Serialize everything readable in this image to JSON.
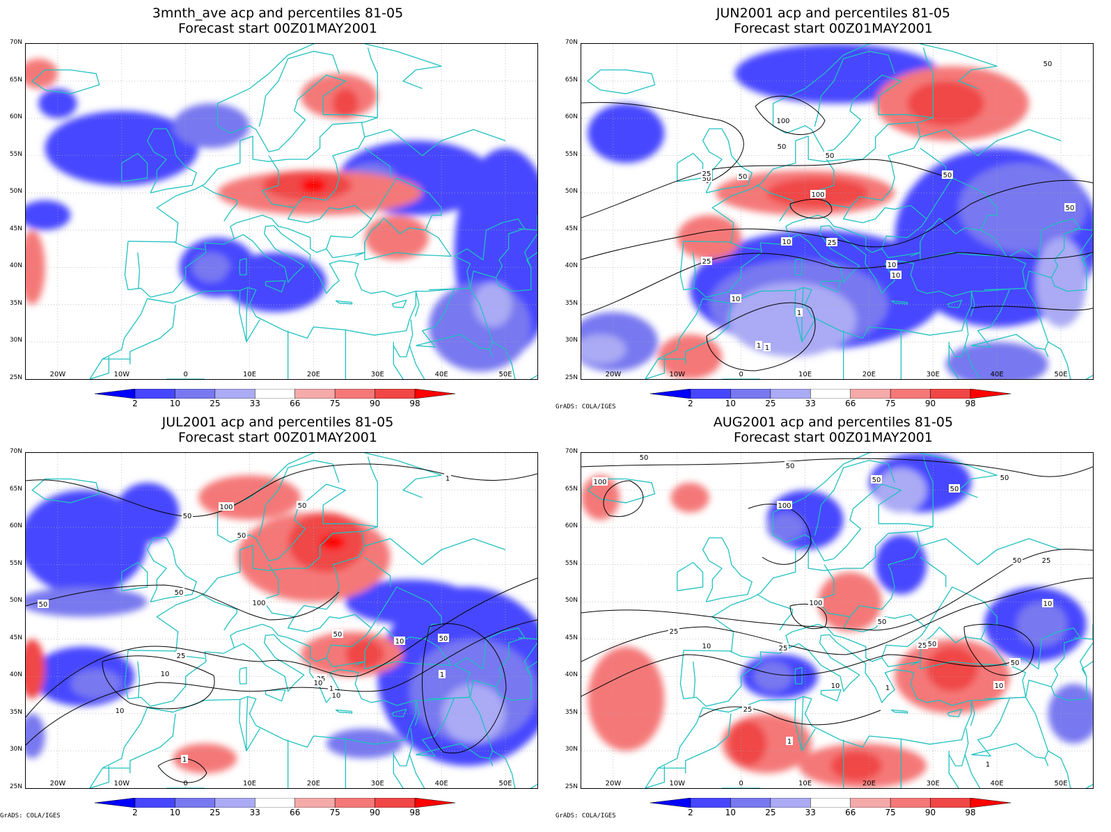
{
  "panels": [
    {
      "title_line1": "3mnth_ave acp and percentiles 81-05",
      "title_line2": "Forecast start 00Z01MAY2001",
      "credit": "",
      "blobs": [
        {
          "lon": -10,
          "lat": 56,
          "rx": 12,
          "ry": 5,
          "c": 1
        },
        {
          "lon": 4,
          "lat": 59,
          "rx": 6,
          "ry": 3,
          "c": 2
        },
        {
          "lon": -20,
          "lat": 62,
          "rx": 3,
          "ry": 2,
          "c": 1
        },
        {
          "lon": -22,
          "lat": 47,
          "rx": 4,
          "ry": 2,
          "c": 1
        },
        {
          "lon": 36,
          "lat": 52,
          "rx": 12,
          "ry": 5,
          "c": 1
        },
        {
          "lon": 29,
          "lat": 52,
          "rx": 4,
          "ry": 2,
          "c": 2
        },
        {
          "lon": 50,
          "lat": 42,
          "rx": 8,
          "ry": 14,
          "c": 1
        },
        {
          "lon": 46,
          "lat": 32,
          "rx": 8,
          "ry": 6,
          "c": 2
        },
        {
          "lon": 48,
          "lat": 35,
          "rx": 3,
          "ry": 3,
          "c": 3
        },
        {
          "lon": 5,
          "lat": 40,
          "rx": 6,
          "ry": 4,
          "c": 1
        },
        {
          "lon": 4,
          "lat": 40,
          "rx": 3,
          "ry": 2,
          "c": 2
        },
        {
          "lon": 14,
          "lat": 38,
          "rx": 8,
          "ry": 4,
          "c": 1
        },
        {
          "lon": 21,
          "lat": 50,
          "rx": 16,
          "ry": 3,
          "c": 6
        },
        {
          "lon": 19,
          "lat": 51,
          "rx": 7,
          "ry": 2,
          "c": 7
        },
        {
          "lon": 20,
          "lat": 51,
          "rx": 2,
          "ry": 1,
          "c": 8
        },
        {
          "lon": 24,
          "lat": 63,
          "rx": 6,
          "ry": 3,
          "c": 6
        },
        {
          "lon": 25,
          "lat": 62,
          "rx": 2,
          "ry": 2,
          "c": 7
        },
        {
          "lon": 33,
          "lat": 44,
          "rx": 5,
          "ry": 3,
          "c": 6
        },
        {
          "lon": -23,
          "lat": 66,
          "rx": 3,
          "ry": 2,
          "c": 6
        },
        {
          "lon": -24,
          "lat": 40,
          "rx": 2,
          "ry": 5,
          "c": 6
        }
      ],
      "contour_labels": []
    },
    {
      "title_line1": "JUN2001 acp and percentiles 81-05",
      "title_line2": "Forecast start 00Z01MAY2001",
      "credit": "GrADS: COLA/IGES",
      "blobs": [
        {
          "lon": 15,
          "lat": 66,
          "rx": 16,
          "ry": 4,
          "c": 1
        },
        {
          "lon": -18,
          "lat": 58,
          "rx": 6,
          "ry": 4,
          "c": 1
        },
        {
          "lon": 12,
          "lat": 37,
          "rx": 20,
          "ry": 8,
          "c": 1
        },
        {
          "lon": 9,
          "lat": 35,
          "rx": 14,
          "ry": 6,
          "c": 2
        },
        {
          "lon": 8,
          "lat": 33,
          "rx": 10,
          "ry": 5,
          "c": 3
        },
        {
          "lon": 40,
          "lat": 44,
          "rx": 16,
          "ry": 12,
          "c": 1
        },
        {
          "lon": 44,
          "lat": 48,
          "rx": 10,
          "ry": 6,
          "c": 2
        },
        {
          "lon": 50,
          "lat": 38,
          "rx": 4,
          "ry": 6,
          "c": 3
        },
        {
          "lon": -20,
          "lat": 30,
          "rx": 7,
          "ry": 4,
          "c": 2
        },
        {
          "lon": -22,
          "lat": 29,
          "rx": 4,
          "ry": 2,
          "c": 3
        },
        {
          "lon": 40,
          "lat": 27,
          "rx": 8,
          "ry": 3,
          "c": 2
        },
        {
          "lon": 33,
          "lat": 62,
          "rx": 12,
          "ry": 5,
          "c": 6
        },
        {
          "lon": 32,
          "lat": 62,
          "rx": 6,
          "ry": 3,
          "c": 7
        },
        {
          "lon": 10,
          "lat": 50,
          "rx": 14,
          "ry": 3,
          "c": 6
        },
        {
          "lon": 12,
          "lat": 50,
          "rx": 8,
          "ry": 2,
          "c": 7
        },
        {
          "lon": -5,
          "lat": 44,
          "rx": 5,
          "ry": 3,
          "c": 6
        },
        {
          "lon": -8,
          "lat": 28,
          "rx": 5,
          "ry": 3,
          "c": 6
        }
      ],
      "contour_labels": [
        "50",
        "100",
        "50",
        "50",
        "100",
        "50",
        "25",
        "50",
        "10",
        "25",
        "10",
        "1",
        "10",
        "1",
        "25",
        "10",
        "1",
        "50",
        "50"
      ]
    },
    {
      "title_line1": "JUL2001 acp and percentiles 81-05",
      "title_line2": "Forecast start 00Z01MAY2001",
      "credit": "GrADS: COLA/IGES",
      "blobs": [
        {
          "lon": -16,
          "lat": 58,
          "rx": 10,
          "ry": 7,
          "c": 1
        },
        {
          "lon": -16,
          "lat": 50,
          "rx": 10,
          "ry": 2,
          "c": 2
        },
        {
          "lon": -6,
          "lat": 62,
          "rx": 5,
          "ry": 4,
          "c": 1
        },
        {
          "lon": -16,
          "lat": 40,
          "rx": 8,
          "ry": 4,
          "c": 1
        },
        {
          "lon": -14,
          "lat": 39,
          "rx": 4,
          "ry": 2,
          "c": 2
        },
        {
          "lon": 44,
          "lat": 40,
          "rx": 14,
          "ry": 12,
          "c": 1
        },
        {
          "lon": 45,
          "lat": 38,
          "rx": 10,
          "ry": 7,
          "c": 2
        },
        {
          "lon": 45,
          "lat": 35,
          "rx": 5,
          "ry": 4,
          "c": 3
        },
        {
          "lon": 35,
          "lat": 50,
          "rx": 10,
          "ry": 3,
          "c": 1
        },
        {
          "lon": -24,
          "lat": 32,
          "rx": 2,
          "ry": 3,
          "c": 2
        },
        {
          "lon": 28,
          "lat": 31,
          "rx": 6,
          "ry": 2,
          "c": 2
        },
        {
          "lon": 20,
          "lat": 56,
          "rx": 12,
          "ry": 6,
          "c": 6
        },
        {
          "lon": 22,
          "lat": 58,
          "rx": 6,
          "ry": 4,
          "c": 7
        },
        {
          "lon": 23,
          "lat": 58,
          "rx": 2,
          "ry": 1,
          "c": 8
        },
        {
          "lon": 10,
          "lat": 64,
          "rx": 8,
          "ry": 3,
          "c": 6
        },
        {
          "lon": 26,
          "lat": 43,
          "rx": 8,
          "ry": 3,
          "c": 6
        },
        {
          "lon": 28,
          "lat": 43,
          "rx": 3,
          "ry": 2,
          "c": 7
        },
        {
          "lon": 3,
          "lat": 29,
          "rx": 5,
          "ry": 2,
          "c": 6
        },
        {
          "lon": -24,
          "lat": 41,
          "rx": 2,
          "ry": 4,
          "c": 7
        }
      ],
      "contour_labels": [
        "50",
        "100",
        "50",
        "50",
        "50",
        "100",
        "50",
        "25",
        "10",
        "10",
        "50",
        "10",
        "25",
        "1",
        "10",
        "1",
        "25",
        "10",
        "1",
        "1",
        "50"
      ]
    },
    {
      "title_line1": "AUG2001 acp and percentiles 81-05",
      "title_line2": "Forecast start 00Z01MAY2001",
      "credit": "GrADS: COLA/IGES",
      "blobs": [
        {
          "lon": 28,
          "lat": 66,
          "rx": 8,
          "ry": 4,
          "c": 1
        },
        {
          "lon": 25,
          "lat": 65,
          "rx": 4,
          "ry": 3,
          "c": 3
        },
        {
          "lon": 10,
          "lat": 61,
          "rx": 6,
          "ry": 4,
          "c": 1
        },
        {
          "lon": 7,
          "lat": 60,
          "rx": 3,
          "ry": 2,
          "c": 2
        },
        {
          "lon": 25,
          "lat": 55,
          "rx": 4,
          "ry": 4,
          "c": 1
        },
        {
          "lon": 46,
          "lat": 47,
          "rx": 8,
          "ry": 5,
          "c": 1
        },
        {
          "lon": 47,
          "lat": 47,
          "rx": 4,
          "ry": 3,
          "c": 2
        },
        {
          "lon": 6,
          "lat": 40,
          "rx": 6,
          "ry": 3,
          "c": 1
        },
        {
          "lon": 5,
          "lat": 40,
          "rx": 3,
          "ry": 2,
          "c": 2
        },
        {
          "lon": 52,
          "lat": 35,
          "rx": 4,
          "ry": 4,
          "c": 2
        },
        {
          "lon": -18,
          "lat": 37,
          "rx": 6,
          "ry": 7,
          "c": 6
        },
        {
          "lon": 4,
          "lat": 31,
          "rx": 7,
          "ry": 4,
          "c": 6
        },
        {
          "lon": 1,
          "lat": 31,
          "rx": 3,
          "ry": 3,
          "c": 7
        },
        {
          "lon": 19,
          "lat": 28,
          "rx": 10,
          "ry": 3,
          "c": 6
        },
        {
          "lon": 18,
          "lat": 28,
          "rx": 4,
          "ry": 2,
          "c": 7
        },
        {
          "lon": 33,
          "lat": 40,
          "rx": 9,
          "ry": 5,
          "c": 6
        },
        {
          "lon": 33,
          "lat": 41,
          "rx": 4,
          "ry": 3,
          "c": 7
        },
        {
          "lon": 17,
          "lat": 50,
          "rx": 5,
          "ry": 4,
          "c": 6
        },
        {
          "lon": -22,
          "lat": 64,
          "rx": 3,
          "ry": 3,
          "c": 6
        },
        {
          "lon": -8,
          "lat": 64,
          "rx": 3,
          "ry": 2,
          "c": 6
        }
      ],
      "contour_labels": [
        "50",
        "50",
        "100",
        "100",
        "50",
        "50",
        "50",
        "50",
        "25",
        "10",
        "100",
        "25",
        "50",
        "25",
        "50",
        "25",
        "10",
        "10",
        "25",
        "1",
        "1",
        "10",
        "50",
        "1"
      ]
    }
  ],
  "axes": {
    "y_ticks": [
      "70N",
      "65N",
      "60N",
      "55N",
      "50N",
      "45N",
      "40N",
      "35N",
      "30N",
      "25N"
    ],
    "x_ticks": [
      "20W",
      "10W",
      "0",
      "10E",
      "20E",
      "30E",
      "40E",
      "50E"
    ],
    "x_values": [
      -20,
      -10,
      0,
      10,
      20,
      30,
      40,
      50
    ],
    "y_values": [
      70,
      65,
      60,
      55,
      50,
      45,
      40,
      35,
      30,
      25
    ],
    "lon_range": [
      -25,
      55
    ],
    "lat_range": [
      25,
      70
    ]
  },
  "colorbar": {
    "labels": [
      "2",
      "10",
      "25",
      "33",
      "66",
      "75",
      "90",
      "98"
    ],
    "colors": [
      "#0000ff",
      "#4646ff",
      "#7878f0",
      "#aaaaf5",
      "#ffffff",
      "#f5aaaa",
      "#f57878",
      "#f04646",
      "#ff0000"
    ]
  },
  "colors": {
    "coast": "#20c0c0",
    "contour": "#000000",
    "grid": "#aaaaaa"
  }
}
